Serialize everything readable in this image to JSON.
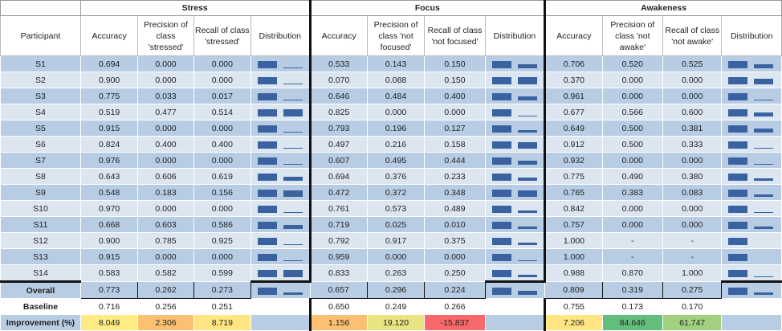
{
  "groups": [
    "Stress",
    "Focus",
    "Awakeness"
  ],
  "headers": {
    "participant": "Participant",
    "stress": [
      "Accuracy",
      "Precision of class 'stressed'",
      "Recall of class 'stressed'",
      "Distribution"
    ],
    "focus": [
      "Accuracy",
      "Precision of class 'not focused'",
      "Recall of class 'not focused'",
      "Distribution"
    ],
    "awakeness": [
      "Accuracy",
      "Precision of class 'not awake'",
      "Recall of class 'not awake'",
      "Distribution"
    ]
  },
  "rows": [
    {
      "p": "S1",
      "s": [
        "0.694",
        "0.000",
        "0.000"
      ],
      "f": [
        "0.533",
        "0.143",
        "0.150"
      ],
      "a": [
        "0.706",
        "0.520",
        "0.525"
      ],
      "sd": [
        1,
        0.15
      ],
      "fd": [
        1,
        0.55
      ],
      "ad": [
        1,
        0.55
      ]
    },
    {
      "p": "S2",
      "s": [
        "0.900",
        "0.000",
        "0.000"
      ],
      "f": [
        "0.070",
        "0.088",
        "0.150"
      ],
      "a": [
        "0.370",
        "0.000",
        "0.000"
      ],
      "sd": [
        1,
        0.15
      ],
      "fd": [
        1,
        1
      ],
      "ad": [
        1,
        0.8
      ]
    },
    {
      "p": "S3",
      "s": [
        "0.775",
        "0.033",
        "0.017"
      ],
      "f": [
        "0.646",
        "0.484",
        "0.400"
      ],
      "a": [
        "0.961",
        "0.000",
        "0.000"
      ],
      "sd": [
        1,
        0.15
      ],
      "fd": [
        1,
        0.6
      ],
      "ad": [
        1,
        0.15
      ]
    },
    {
      "p": "S4",
      "s": [
        "0.519",
        "0.477",
        "0.514"
      ],
      "f": [
        "0.825",
        "0.000",
        "0.000"
      ],
      "a": [
        "0.677",
        "0.566",
        "0.600"
      ],
      "sd": [
        1,
        1
      ],
      "fd": [
        1,
        0.15
      ],
      "ad": [
        1,
        0.55
      ]
    },
    {
      "p": "S5",
      "s": [
        "0.915",
        "0.000",
        "0.000"
      ],
      "f": [
        "0.793",
        "0.196",
        "0.127"
      ],
      "a": [
        "0.649",
        "0.500",
        "0.381"
      ],
      "sd": [
        1,
        0.15
      ],
      "fd": [
        1,
        0.3
      ],
      "ad": [
        1,
        0.55
      ]
    },
    {
      "p": "S6",
      "s": [
        "0.824",
        "0.400",
        "0.400"
      ],
      "f": [
        "0.497",
        "0.216",
        "0.158"
      ],
      "a": [
        "0.912",
        "0.500",
        "0.333"
      ],
      "sd": [
        1,
        0.15
      ],
      "fd": [
        1,
        0.9
      ],
      "ad": [
        1,
        0.15
      ]
    },
    {
      "p": "S7",
      "s": [
        "0.976",
        "0.000",
        "0.000"
      ],
      "f": [
        "0.607",
        "0.495",
        "0.444"
      ],
      "a": [
        "0.932",
        "0.000",
        "0.000"
      ],
      "sd": [
        1,
        0.15
      ],
      "fd": [
        1,
        0.6
      ],
      "ad": [
        1,
        0.15
      ]
    },
    {
      "p": "S8",
      "s": [
        "0.643",
        "0.606",
        "0.619"
      ],
      "f": [
        "0.694",
        "0.376",
        "0.233"
      ],
      "a": [
        "0.775",
        "0.490",
        "0.380"
      ],
      "sd": [
        1,
        0.6
      ],
      "fd": [
        1,
        0.4
      ],
      "ad": [
        1,
        0.3
      ]
    },
    {
      "p": "S9",
      "s": [
        "0.548",
        "0.183",
        "0.156"
      ],
      "f": [
        "0.472",
        "0.372",
        "0.348"
      ],
      "a": [
        "0.765",
        "0.383",
        "0.083"
      ],
      "sd": [
        1,
        0.9
      ],
      "fd": [
        1,
        0.9
      ],
      "ad": [
        1,
        0.3
      ]
    },
    {
      "p": "S10",
      "s": [
        "0.970",
        "0.000",
        "0.000"
      ],
      "f": [
        "0.761",
        "0.573",
        "0.489"
      ],
      "a": [
        "0.842",
        "0.000",
        "0.000"
      ],
      "sd": [
        1,
        0.15
      ],
      "fd": [
        1,
        0.3
      ],
      "ad": [
        1,
        0.15
      ]
    },
    {
      "p": "S11",
      "s": [
        "0.668",
        "0.603",
        "0.586"
      ],
      "f": [
        "0.719",
        "0.025",
        "0.010"
      ],
      "a": [
        "0.757",
        "0.000",
        "0.000"
      ],
      "sd": [
        1,
        0.55
      ],
      "fd": [
        1,
        0.3
      ],
      "ad": [
        1,
        0.3
      ]
    },
    {
      "p": "S12",
      "s": [
        "0.900",
        "0.785",
        "0.925"
      ],
      "f": [
        "0.792",
        "0.917",
        "0.375"
      ],
      "a": [
        "1.000",
        "-",
        "-"
      ],
      "sd": [
        1,
        0.15
      ],
      "fd": [
        1,
        0.3
      ],
      "ad": [
        1,
        0
      ]
    },
    {
      "p": "S13",
      "s": [
        "0.915",
        "0.000",
        "0.000"
      ],
      "f": [
        "0.959",
        "0.000",
        "0.000"
      ],
      "a": [
        "1.000",
        "-",
        "-"
      ],
      "sd": [
        1,
        0.15
      ],
      "fd": [
        1,
        0.15
      ],
      "ad": [
        1,
        0
      ]
    },
    {
      "p": "S14",
      "s": [
        "0.583",
        "0.582",
        "0.599"
      ],
      "f": [
        "0.833",
        "0.263",
        "0.250"
      ],
      "a": [
        "0.988",
        "0.870",
        "1.000"
      ],
      "sd": [
        1,
        1
      ],
      "fd": [
        1,
        0.3
      ],
      "ad": [
        1,
        0.15
      ]
    }
  ],
  "overall": {
    "label": "Overall",
    "s": [
      "0.773",
      "0.262",
      "0.273"
    ],
    "f": [
      "0.657",
      "0.296",
      "0.224"
    ],
    "a": [
      "0.809",
      "0.319",
      "0.275"
    ],
    "sd": [
      1,
      0.3
    ],
    "fd": [
      1,
      0.55
    ],
    "ad": [
      1,
      0.3
    ]
  },
  "baseline": {
    "label": "Baseline",
    "s": [
      "0.716",
      "0.256",
      "0.251"
    ],
    "f": [
      "0.650",
      "0.249",
      "0.266"
    ],
    "a": [
      "0.755",
      "0.173",
      "0.170"
    ]
  },
  "improvement": {
    "label": "Improvement (%)",
    "s": [
      "8.049",
      "2.306",
      "8.719"
    ],
    "f": [
      "1.156",
      "19.120",
      "-15.837"
    ],
    "a": [
      "7.206",
      "84.646",
      "61.747"
    ],
    "colors": {
      "s": [
        "#ffeb84",
        "#fdbf71",
        "#ffe683"
      ],
      "f": [
        "#fdbf71",
        "#e7e582",
        "#f8696b"
      ],
      "a": [
        "#ffe683",
        "#63be7b",
        "#a2d07f"
      ]
    }
  },
  "bar_color": "#3a62a0"
}
